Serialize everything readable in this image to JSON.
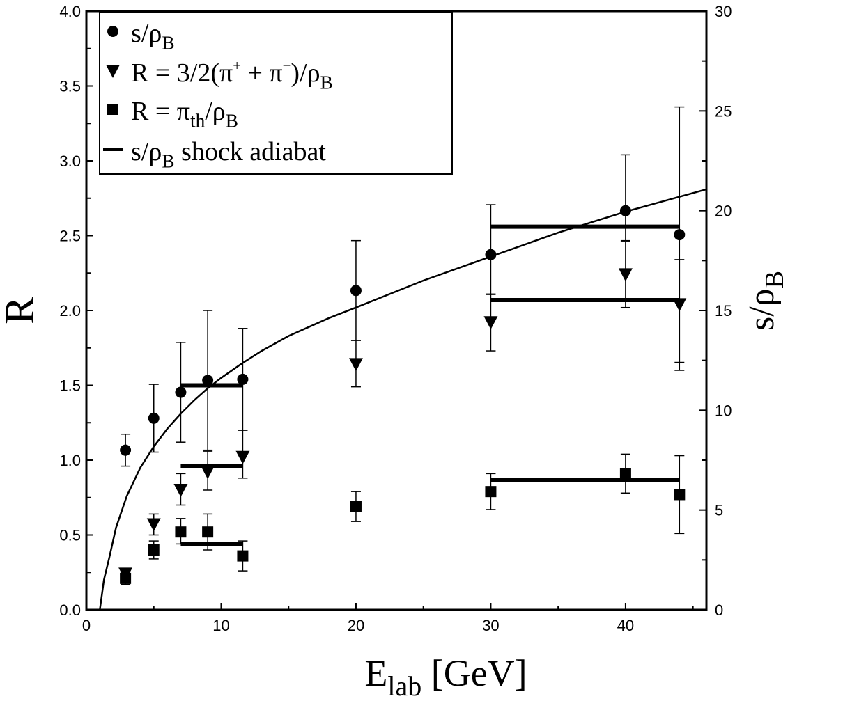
{
  "chart_data": {
    "type": "scatter",
    "x_axis": {
      "label_main": "E",
      "label_sub": "lab",
      "label_unit": " [GeV]",
      "range": [
        0,
        46
      ],
      "ticks": [
        0,
        10,
        20,
        30,
        40
      ],
      "tick_labels": [
        "0",
        "10",
        "20",
        "30",
        "40"
      ]
    },
    "y_axis_left": {
      "label": "R",
      "range": [
        0,
        4.0
      ],
      "ticks": [
        0,
        0.5,
        1.0,
        1.5,
        2.0,
        2.5,
        3.0,
        3.5,
        4.0
      ],
      "tick_labels": [
        "0.0",
        "0.5",
        "1.0",
        "1.5",
        "2.0",
        "2.5",
        "3.0",
        "3.5",
        "4.0"
      ]
    },
    "y_axis_right": {
      "label_main": "s/ρ",
      "label_sub": "B",
      "range": [
        0,
        30
      ],
      "ticks": [
        0,
        5,
        10,
        15,
        20,
        25,
        30
      ],
      "tick_labels": [
        "0",
        "5",
        "10",
        "15",
        "20",
        "25",
        "30"
      ]
    },
    "legend": {
      "position": "top-left",
      "entries": [
        {
          "marker": "circle",
          "parts": [
            {
              "t": "s/ρ"
            },
            {
              "t": "B",
              "sub": true
            }
          ]
        },
        {
          "marker": "triangle-down",
          "parts": [
            {
              "t": "R = 3/2(π"
            },
            {
              "t": "+",
              "sup": true
            },
            {
              "t": " + π"
            },
            {
              "t": "−",
              "sup": true
            },
            {
              "t": ")/ρ"
            },
            {
              "t": "B",
              "sub": true
            }
          ]
        },
        {
          "marker": "square",
          "parts": [
            {
              "t": "R = π"
            },
            {
              "t": "th",
              "sub": true
            },
            {
              "t": "/ρ"
            },
            {
              "t": "B",
              "sub": true
            }
          ]
        },
        {
          "marker": "line",
          "parts": [
            {
              "t": "s/ρ"
            },
            {
              "t": "B",
              "sub": true
            },
            {
              "t": " shock adiabat"
            }
          ]
        }
      ]
    },
    "series": [
      {
        "name": "s/ρB",
        "marker": "circle",
        "axis": "right",
        "points": [
          {
            "x": 2.9,
            "y": 8.0,
            "lo": 7.2,
            "hi": 8.8
          },
          {
            "x": 5.0,
            "y": 9.6,
            "lo": 7.9,
            "hi": 11.3
          },
          {
            "x": 7.0,
            "y": 10.9,
            "lo": 8.4,
            "hi": 13.4
          },
          {
            "x": 9.0,
            "y": 11.5,
            "lo": 8.0,
            "hi": 15.0
          },
          {
            "x": 11.6,
            "y": 11.55,
            "lo": 9.0,
            "hi": 14.1
          },
          {
            "x": 20.0,
            "y": 16.0,
            "lo": 13.5,
            "hi": 18.5
          },
          {
            "x": 30.0,
            "y": 17.8,
            "lo": 15.8,
            "hi": 20.3
          },
          {
            "x": 40.0,
            "y": 20.0,
            "lo": 18.5,
            "hi": 22.8
          },
          {
            "x": 44.0,
            "y": 18.8,
            "lo": 12.4,
            "hi": 25.2
          }
        ]
      },
      {
        "name": "R = 3/2(π+ + π−)/ρB",
        "marker": "triangle-down",
        "axis": "left",
        "points": [
          {
            "x": 2.9,
            "y": 0.24
          },
          {
            "x": 5.0,
            "y": 0.57,
            "lo": 0.5,
            "hi": 0.64
          },
          {
            "x": 7.0,
            "y": 0.8,
            "lo": 0.7,
            "hi": 0.91
          },
          {
            "x": 9.0,
            "y": 0.92,
            "lo": 0.8,
            "hi": 1.06
          },
          {
            "x": 11.6,
            "y": 1.02,
            "lo": 0.88,
            "hi": 1.2
          },
          {
            "x": 20.0,
            "y": 1.64,
            "lo": 1.49,
            "hi": 1.8
          },
          {
            "x": 30.0,
            "y": 1.92,
            "lo": 1.73,
            "hi": 2.11
          },
          {
            "x": 40.0,
            "y": 2.24,
            "lo": 2.02,
            "hi": 2.46
          },
          {
            "x": 44.0,
            "y": 2.04,
            "lo": 1.6,
            "hi": 2.34
          }
        ]
      },
      {
        "name": "R = πth/ρB",
        "marker": "square",
        "axis": "left",
        "points": [
          {
            "x": 2.9,
            "y": 0.21,
            "lo": 0.17,
            "hi": 0.27
          },
          {
            "x": 5.0,
            "y": 0.4,
            "lo": 0.34,
            "hi": 0.46
          },
          {
            "x": 7.0,
            "y": 0.52,
            "lo": 0.44,
            "hi": 0.61
          },
          {
            "x": 9.0,
            "y": 0.52,
            "lo": 0.4,
            "hi": 0.64
          },
          {
            "x": 11.6,
            "y": 0.36,
            "lo": 0.26,
            "hi": 0.46
          },
          {
            "x": 20.0,
            "y": 0.69,
            "lo": 0.59,
            "hi": 0.79
          },
          {
            "x": 30.0,
            "y": 0.79,
            "lo": 0.67,
            "hi": 0.91
          },
          {
            "x": 40.0,
            "y": 0.91,
            "lo": 0.78,
            "hi": 1.04
          },
          {
            "x": 44.0,
            "y": 0.77,
            "lo": 0.51,
            "hi": 1.03
          }
        ]
      }
    ],
    "horizontal_bands": [
      {
        "x_from": 7.0,
        "x_to": 11.6,
        "y": 1.5,
        "axis": "left"
      },
      {
        "x_from": 7.0,
        "x_to": 11.6,
        "y": 0.96,
        "axis": "left"
      },
      {
        "x_from": 7.0,
        "x_to": 11.6,
        "y": 0.44,
        "axis": "left"
      },
      {
        "x_from": 30.0,
        "x_to": 44.0,
        "y": 2.56,
        "axis": "left"
      },
      {
        "x_from": 30.0,
        "x_to": 44.0,
        "y": 2.07,
        "axis": "left"
      },
      {
        "x_from": 30.0,
        "x_to": 44.0,
        "y": 0.87,
        "axis": "left"
      }
    ],
    "shock_adiabat_curve": {
      "axis": "left",
      "points": [
        [
          1.0,
          0.0
        ],
        [
          1.3,
          0.2
        ],
        [
          1.7,
          0.35
        ],
        [
          2.2,
          0.55
        ],
        [
          3.0,
          0.76
        ],
        [
          4.0,
          0.95
        ],
        [
          5.0,
          1.09
        ],
        [
          6.0,
          1.21
        ],
        [
          7.0,
          1.31
        ],
        [
          8.0,
          1.4
        ],
        [
          9.0,
          1.48
        ],
        [
          10.0,
          1.55
        ],
        [
          11.6,
          1.65
        ],
        [
          13.0,
          1.73
        ],
        [
          15.0,
          1.83
        ],
        [
          18.0,
          1.95
        ],
        [
          20.0,
          2.02
        ],
        [
          25.0,
          2.2
        ],
        [
          30.0,
          2.36
        ],
        [
          35.0,
          2.52
        ],
        [
          40.0,
          2.66
        ],
        [
          46.0,
          2.81
        ]
      ]
    }
  }
}
